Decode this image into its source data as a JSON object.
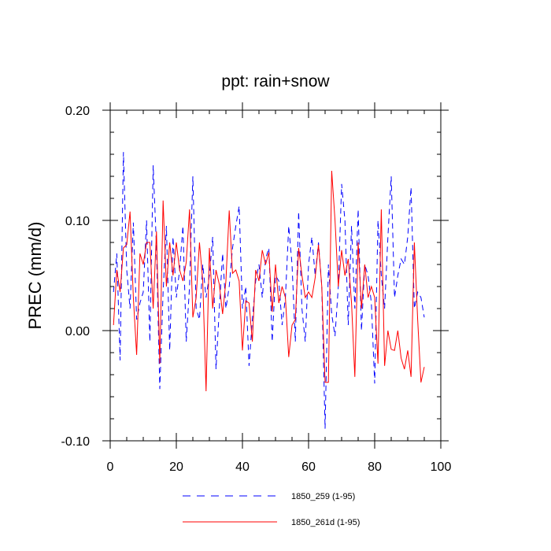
{
  "chart_data": {
    "type": "line",
    "title": "ppt: rain+snow",
    "xlabel": "",
    "ylabel": "PREC  (mm/d)",
    "xlim": [
      0,
      100
    ],
    "ylim": [
      -0.1,
      0.2
    ],
    "xticks": [
      0,
      20,
      40,
      60,
      80,
      100
    ],
    "xtick_labels": [
      "0",
      "20",
      "40",
      "60",
      "80",
      "100"
    ],
    "yticks": [
      -0.1,
      0.0,
      0.1,
      0.2
    ],
    "ytick_labels": [
      "-0.10",
      "0.00",
      "0.10",
      "0.20"
    ],
    "grid": false,
    "legend_position": "bottom",
    "x": [
      1,
      2,
      3,
      4,
      5,
      6,
      7,
      8,
      9,
      10,
      11,
      12,
      13,
      14,
      15,
      16,
      17,
      18,
      19,
      20,
      21,
      22,
      23,
      24,
      25,
      26,
      27,
      28,
      29,
      30,
      31,
      32,
      33,
      34,
      35,
      36,
      37,
      38,
      39,
      40,
      41,
      42,
      43,
      44,
      45,
      46,
      47,
      48,
      49,
      50,
      51,
      52,
      53,
      54,
      55,
      56,
      57,
      58,
      59,
      60,
      61,
      62,
      63,
      64,
      65,
      66,
      67,
      68,
      69,
      70,
      71,
      72,
      73,
      74,
      75,
      76,
      77,
      78,
      79,
      80,
      81,
      82,
      83,
      84,
      85,
      86,
      87,
      88,
      89,
      90,
      91,
      92,
      93,
      94,
      95
    ],
    "series": [
      {
        "name": "1850_259 (1-95)",
        "color": "#0000ff",
        "style": "dashed",
        "values": [
          0.035,
          0.07,
          -0.027,
          0.162,
          0.055,
          0.02,
          0.098,
          0.01,
          0.025,
          0.035,
          0.1,
          -0.01,
          0.15,
          0.075,
          -0.053,
          0.035,
          0.095,
          -0.018,
          0.085,
          0.03,
          0.055,
          0.095,
          -0.01,
          0.04,
          0.14,
          0.02,
          0.01,
          0.06,
          0.03,
          0.05,
          0.085,
          -0.035,
          0.02,
          0.07,
          0.02,
          0.04,
          0.075,
          0.095,
          0.113,
          0.02,
          0.04,
          -0.032,
          0.01,
          0.045,
          0.06,
          0.03,
          0.065,
          0.075,
          -0.01,
          0.05,
          0.045,
          0.005,
          0.03,
          0.095,
          0.06,
          -0.01,
          0.108,
          0.02,
          -0.01,
          0.06,
          0.085,
          0.05,
          0.08,
          0.04,
          -0.089,
          0.06,
          0.015,
          -0.005,
          0.04,
          0.133,
          0.1,
          0.005,
          0.095,
          0.02,
          0.11,
          0.0,
          0.06,
          0.05,
          0.025,
          -0.048,
          0.1,
          0.05,
          0.02,
          0.085,
          0.14,
          0.03,
          0.05,
          0.065,
          0.06,
          0.085,
          0.13,
          0.02,
          0.035,
          0.03,
          0.012
        ]
      },
      {
        "name": "1850_261d (1-95)",
        "color": "#ff0000",
        "style": "solid",
        "values": [
          0.005,
          0.055,
          0.035,
          0.075,
          0.078,
          0.108,
          0.03,
          -0.022,
          0.07,
          0.06,
          0.08,
          0.08,
          0.02,
          0.09,
          -0.03,
          0.118,
          0.04,
          0.08,
          0.05,
          0.08,
          0.055,
          0.045,
          0.062,
          0.11,
          0.012,
          0.03,
          0.08,
          0.045,
          -0.055,
          0.075,
          0.02,
          0.055,
          0.042,
          0.015,
          0.045,
          0.109,
          0.052,
          0.055,
          0.045,
          -0.018,
          0.027,
          0.025,
          -0.01,
          0.055,
          0.045,
          0.073,
          0.06,
          0.071,
          0.017,
          0.06,
          0.025,
          0.04,
          0.03,
          -0.024,
          0.005,
          0.01,
          0.075,
          0.05,
          0.03,
          0.035,
          0.03,
          0.048,
          0.078,
          0.04,
          -0.047,
          -0.047,
          0.145,
          0.1,
          0.04,
          0.073,
          0.05,
          0.065,
          0.025,
          -0.042,
          0.08,
          0.02,
          0.06,
          0.03,
          0.04,
          0.03,
          -0.03,
          0.11,
          -0.032,
          0.0,
          -0.017,
          -0.018,
          0.0,
          -0.025,
          -0.035,
          -0.018,
          -0.042,
          0.08,
          0.01,
          -0.047,
          -0.033
        ]
      }
    ]
  }
}
